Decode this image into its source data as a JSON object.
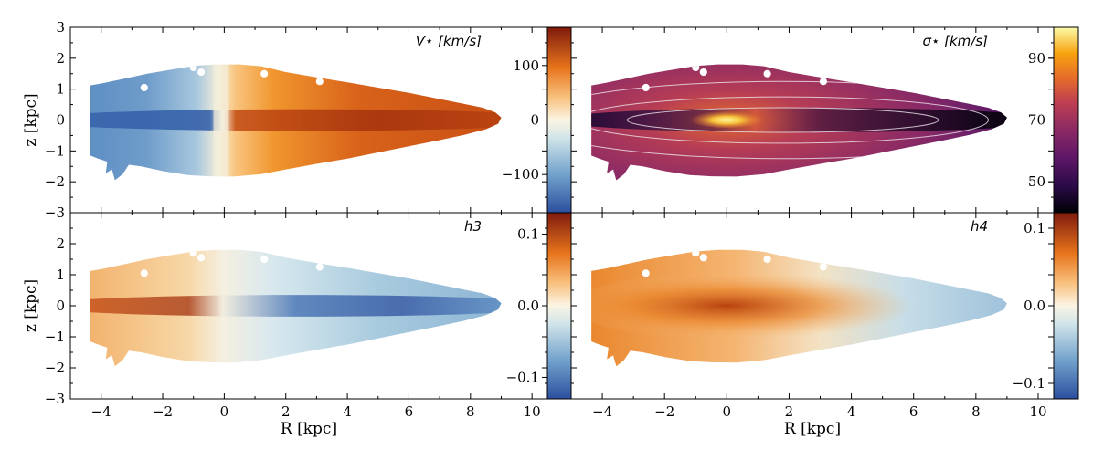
{
  "chart_data": [
    {
      "type": "heatmap",
      "panel": "top-left",
      "title": "V⋆ [km/s]",
      "ylabel": "z [kpc]",
      "xlabel": "",
      "xlim": [
        -5,
        10.5
      ],
      "ylim": [
        -3,
        3
      ],
      "yticks": [
        "−3",
        "−2",
        "−1",
        "0",
        "1",
        "2",
        "3"
      ],
      "colormap": "RdYlBu reversed (blue→white→orange→dark red)",
      "colorbar": {
        "min": -170,
        "max": 170,
        "ticks": [
          -100,
          0,
          100
        ],
        "tick_labels": [
          "−100",
          "0",
          "100"
        ]
      },
      "pattern": "antisymmetric rotation field: negative (blue) for R<0, positive (orange/red) for R>0, strongest near midplane"
    },
    {
      "type": "heatmap",
      "panel": "top-right",
      "title": "σ⋆ [km/s]",
      "ylabel": "",
      "xlabel": "",
      "xlim": [
        -5,
        10.5
      ],
      "ylim": [
        -3,
        3
      ],
      "colormap": "inferno (black→purple→orange→yellow)",
      "colorbar": {
        "min": 40,
        "max": 100,
        "ticks": [
          50,
          70,
          90
        ],
        "tick_labels": [
          "50",
          "70",
          "90"
        ]
      },
      "pattern": "dispersion peak (yellow) at center; low (black) along midplane at large R; white isophote contours"
    },
    {
      "type": "heatmap",
      "panel": "bottom-left",
      "title": "h3",
      "ylabel": "z [kpc]",
      "xlabel": "R [kpc]",
      "xlim": [
        -5,
        10.5
      ],
      "ylim": [
        -3,
        3
      ],
      "xticks": [
        "−4",
        "−2",
        "0",
        "2",
        "4",
        "6",
        "8",
        "10"
      ],
      "yticks": [
        "−3",
        "−2",
        "−1",
        "0",
        "1",
        "2"
      ],
      "colormap": "RdYlBu reversed",
      "colorbar": {
        "min": -0.13,
        "max": 0.13,
        "ticks": [
          -0.1,
          0.0,
          0.1
        ],
        "tick_labels": [
          "−0.1",
          "0.0",
          "0.1"
        ]
      },
      "pattern": "anti-correlated with V: positive (red) for R<0 midplane, negative (blue) for R>0 midplane"
    },
    {
      "type": "heatmap",
      "panel": "bottom-right",
      "title": "h4",
      "ylabel": "",
      "xlabel": "R [kpc]",
      "xlim": [
        -5,
        10.5
      ],
      "ylim": [
        -3,
        3
      ],
      "xticks": [
        "−4",
        "−2",
        "0",
        "2",
        "4",
        "6",
        "8",
        "10"
      ],
      "colormap": "RdYlBu reversed",
      "colorbar": {
        "min": -0.12,
        "max": 0.12,
        "ticks": [
          -0.1,
          0.0,
          0.1
        ],
        "tick_labels": [
          "−0.1",
          "0.0",
          "0.1"
        ]
      },
      "pattern": "mostly positive (orange) near center and midplane, bluish in outer disk"
    }
  ]
}
